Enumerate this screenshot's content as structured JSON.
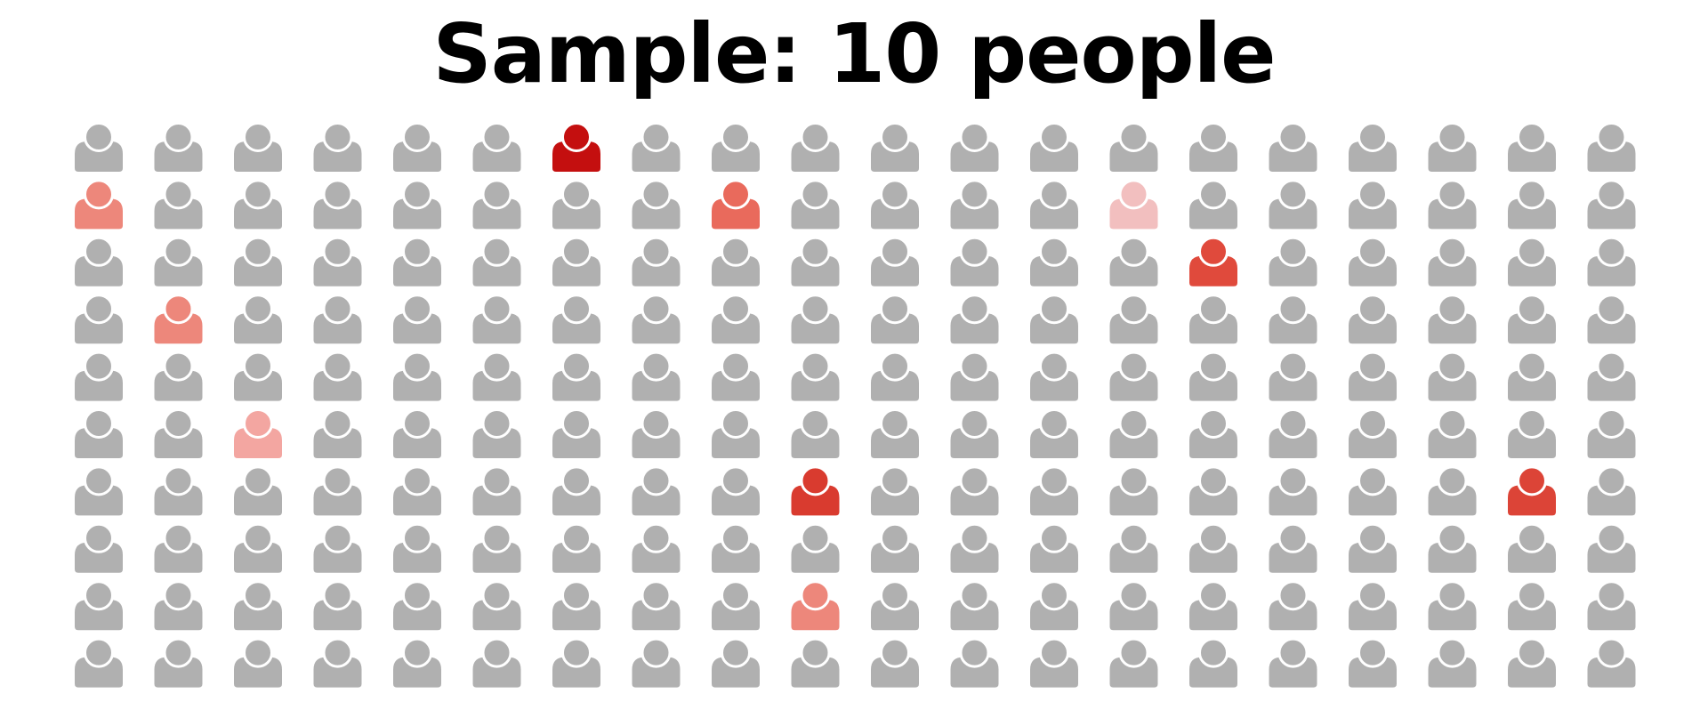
{
  "chart_data": {
    "type": "pictogram",
    "title": "Sample: 10 people",
    "grid": {
      "columns": 20,
      "rows": 10
    },
    "base_color": "#b0b0b0",
    "highlighted": [
      {
        "column": 7,
        "row": 1,
        "color": "#c40f0f"
      },
      {
        "column": 1,
        "row": 2,
        "color": "#ed877b"
      },
      {
        "column": 9,
        "row": 2,
        "color": "#e96a5c"
      },
      {
        "column": 14,
        "row": 2,
        "color": "#f2bfbf"
      },
      {
        "column": 15,
        "row": 3,
        "color": "#e04a3c"
      },
      {
        "column": 2,
        "row": 4,
        "color": "#ed877b"
      },
      {
        "column": 3,
        "row": 6,
        "color": "#f3a6a1"
      },
      {
        "column": 10,
        "row": 7,
        "color": "#d93b2f"
      },
      {
        "column": 19,
        "row": 7,
        "color": "#dc4437"
      },
      {
        "column": 10,
        "row": 9,
        "color": "#ed877b"
      }
    ]
  }
}
